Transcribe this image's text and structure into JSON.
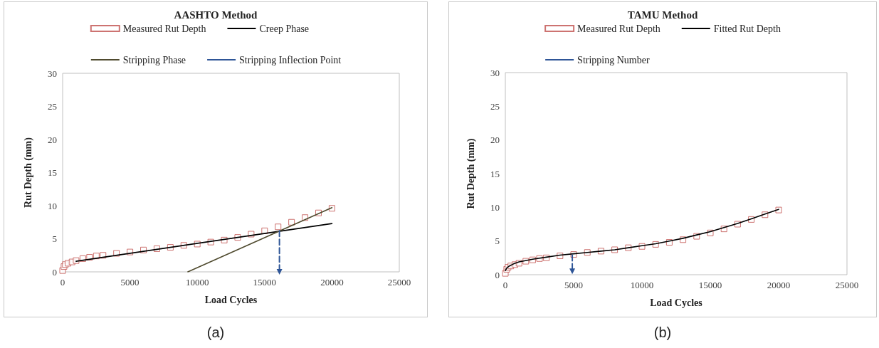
{
  "chart_data": [
    {
      "type": "scatter",
      "title": "AASHTO Method",
      "xlabel": "Load Cycles",
      "ylabel": "Rut Depth (mm)",
      "xlim": [
        0,
        25000
      ],
      "ylim": [
        0,
        30
      ],
      "xticks": [
        0,
        5000,
        10000,
        15000,
        20000,
        25000
      ],
      "yticks": [
        0,
        5,
        10,
        15,
        20,
        25,
        30
      ],
      "grid": false,
      "legend": "top",
      "annotations": [
        "(a)"
      ],
      "series": [
        {
          "name": "Measured Rut Depth",
          "marker": "square",
          "color": "#c0504d",
          "x": [
            0,
            100,
            200,
            400,
            700,
            1000,
            1500,
            2000,
            2500,
            3000,
            4000,
            5000,
            6000,
            7000,
            8000,
            9000,
            10000,
            11000,
            12000,
            13000,
            14000,
            15000,
            16000,
            17000,
            18000,
            19000,
            20000
          ],
          "values": [
            0.2,
            0.8,
            1.1,
            1.3,
            1.5,
            1.7,
            2.0,
            2.2,
            2.4,
            2.5,
            2.8,
            3.0,
            3.3,
            3.5,
            3.7,
            4.0,
            4.2,
            4.5,
            4.8,
            5.2,
            5.7,
            6.2,
            6.8,
            7.5,
            8.2,
            8.9,
            9.6
          ]
        },
        {
          "name": "Creep Phase",
          "type": "line",
          "marker": "none",
          "line_style": "solid",
          "color": "#000000",
          "x": [
            1000,
            20000
          ],
          "values": [
            1.6,
            7.3
          ]
        },
        {
          "name": "Stripping Phase",
          "type": "line",
          "marker": "none",
          "line_style": "solid",
          "color": "#4f4a2e",
          "x": [
            9300,
            20000
          ],
          "values": [
            0,
            9.7
          ]
        },
        {
          "name": "Stripping Inflection Point",
          "type": "line",
          "marker": "triangle",
          "line_style": "dashed",
          "color": "#2e5597",
          "x": [
            16100,
            16100
          ],
          "values": [
            6.2,
            0
          ]
        }
      ]
    },
    {
      "type": "scatter",
      "title": "TAMU Method",
      "xlabel": "Load Cycles",
      "ylabel": "Rut Depth (mm)",
      "xlim": [
        0,
        25000
      ],
      "ylim": [
        0,
        30
      ],
      "xticks": [
        0,
        5000,
        10000,
        15000,
        20000,
        25000
      ],
      "yticks": [
        0,
        5,
        10,
        15,
        20,
        25,
        30
      ],
      "grid": false,
      "legend": "top",
      "annotations": [
        "(b)"
      ],
      "series": [
        {
          "name": "Measured Rut Depth",
          "marker": "square",
          "color": "#c0504d",
          "x": [
            0,
            100,
            200,
            400,
            700,
            1000,
            1500,
            2000,
            2500,
            3000,
            4000,
            5000,
            6000,
            7000,
            8000,
            9000,
            10000,
            11000,
            12000,
            13000,
            14000,
            15000,
            16000,
            17000,
            18000,
            19000,
            20000
          ],
          "values": [
            0.2,
            0.8,
            1.1,
            1.3,
            1.5,
            1.7,
            2.0,
            2.2,
            2.4,
            2.5,
            2.8,
            3.0,
            3.3,
            3.5,
            3.7,
            4.0,
            4.2,
            4.5,
            4.8,
            5.2,
            5.7,
            6.2,
            6.8,
            7.5,
            8.2,
            8.9,
            9.6
          ]
        },
        {
          "name": "Fitted Rut Depth",
          "type": "line",
          "marker": "none",
          "line_style": "solid",
          "color": "#000000",
          "x": [
            0,
            100,
            300,
            600,
            1000,
            2000,
            3000,
            4000,
            5000,
            6000,
            7000,
            8000,
            9000,
            10000,
            11000,
            12000,
            13000,
            14000,
            15000,
            16000,
            17000,
            18000,
            19000,
            20000
          ],
          "values": [
            0.6,
            1.0,
            1.3,
            1.6,
            1.9,
            2.3,
            2.6,
            2.9,
            3.1,
            3.3,
            3.5,
            3.7,
            4.0,
            4.3,
            4.6,
            5.0,
            5.4,
            5.9,
            6.4,
            7.0,
            7.6,
            8.3,
            9.0,
            9.7
          ]
        },
        {
          "name": "Stripping Number",
          "type": "line",
          "marker": "triangle",
          "line_style": "dashed",
          "color": "#2e5597",
          "x": [
            4900,
            4900
          ],
          "values": [
            2.9,
            0.5
          ]
        }
      ]
    }
  ]
}
